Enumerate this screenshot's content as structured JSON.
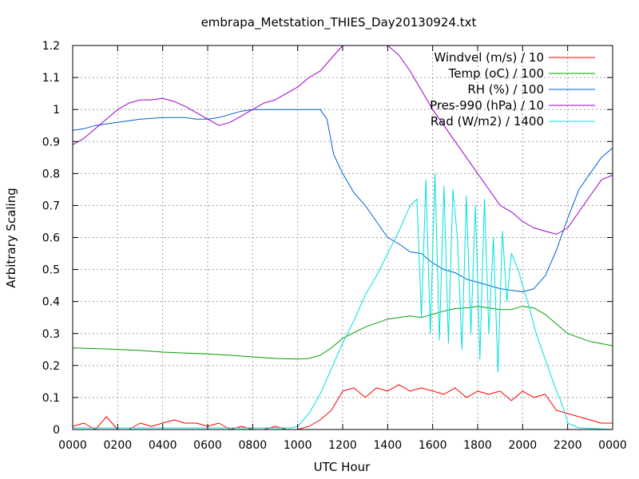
{
  "chart_data": {
    "type": "line",
    "title": "embrapa_Metstation_THIES_Day20130924.txt",
    "xlabel": "UTC Hour",
    "ylabel": "Arbitrary Scaling",
    "xlim": [
      0,
      24
    ],
    "ylim": [
      0,
      1.2
    ],
    "x_ticks": [
      0,
      2,
      4,
      6,
      8,
      10,
      12,
      14,
      16,
      18,
      20,
      22,
      24
    ],
    "x_tick_labels": [
      "0000",
      "0200",
      "0400",
      "0600",
      "0800",
      "1000",
      "1200",
      "1400",
      "1600",
      "1800",
      "2000",
      "2200",
      "0000"
    ],
    "y_ticks": [
      0,
      0.1,
      0.2,
      0.3,
      0.4,
      0.5,
      0.6,
      0.7,
      0.8,
      0.9,
      1,
      1.1,
      1.2
    ],
    "y_tick_labels": [
      "0",
      "0.1",
      "0.2",
      "0.3",
      "0.4",
      "0.5",
      "0.6",
      "0.7",
      "0.8",
      "0.9",
      "1",
      "1.1",
      "1.2"
    ],
    "grid": true,
    "legend_position": "top-right",
    "series": [
      {
        "name": "Windvel (m/s) / 10",
        "color": "#ff0000",
        "x": [
          0,
          0.5,
          1,
          1.5,
          2,
          2.5,
          3,
          3.5,
          4,
          4.5,
          5,
          5.5,
          6,
          6.5,
          7,
          7.5,
          8,
          8.5,
          9,
          9.5,
          10,
          10.5,
          11,
          11.5,
          12,
          12.5,
          13,
          13.5,
          14,
          14.5,
          15,
          15.5,
          16,
          16.5,
          17,
          17.5,
          18,
          18.5,
          19,
          19.5,
          20,
          20.5,
          21,
          21.5,
          22,
          22.5,
          23,
          23.5,
          24
        ],
        "y": [
          0.01,
          0.02,
          0.0,
          0.04,
          0.0,
          0.0,
          0.02,
          0.01,
          0.02,
          0.03,
          0.02,
          0.02,
          0.01,
          0.02,
          0.0,
          0.01,
          0.0,
          0.0,
          0.01,
          0.0,
          0.0,
          0.01,
          0.03,
          0.06,
          0.12,
          0.13,
          0.1,
          0.13,
          0.12,
          0.14,
          0.12,
          0.13,
          0.12,
          0.11,
          0.13,
          0.1,
          0.12,
          0.11,
          0.12,
          0.09,
          0.12,
          0.1,
          0.11,
          0.06,
          0.05,
          0.04,
          0.03,
          0.02,
          0.02
        ]
      },
      {
        "name": "Temp (oC) / 100",
        "color": "#00a000",
        "x": [
          0,
          1,
          2,
          3,
          4,
          5,
          6,
          7,
          8,
          9,
          10,
          10.5,
          11,
          11.5,
          12,
          13,
          14,
          15,
          15.5,
          16,
          16.5,
          17,
          17.5,
          18,
          18.5,
          19,
          19.5,
          20,
          20.5,
          21,
          21.5,
          22,
          23,
          24
        ],
        "y": [
          0.255,
          0.253,
          0.25,
          0.247,
          0.242,
          0.239,
          0.236,
          0.232,
          0.227,
          0.222,
          0.22,
          0.222,
          0.232,
          0.255,
          0.285,
          0.32,
          0.345,
          0.355,
          0.35,
          0.36,
          0.37,
          0.378,
          0.38,
          0.385,
          0.38,
          0.375,
          0.375,
          0.385,
          0.38,
          0.36,
          0.33,
          0.3,
          0.275,
          0.262
        ]
      },
      {
        "name": "RH (%) / 100",
        "color": "#0060d0",
        "x": [
          0,
          0.5,
          1,
          1.5,
          2,
          3,
          4,
          5,
          5.5,
          6,
          6.5,
          7,
          7.5,
          8,
          9,
          10,
          11,
          11.3,
          11.6,
          12,
          12.5,
          13,
          13.5,
          14,
          14.5,
          15,
          15.5,
          16,
          16.5,
          17,
          17.5,
          18,
          18.5,
          19,
          19.5,
          20,
          20.5,
          21,
          21.5,
          22,
          22.5,
          23,
          23.5,
          24
        ],
        "y": [
          0.935,
          0.94,
          0.95,
          0.955,
          0.96,
          0.97,
          0.975,
          0.975,
          0.97,
          0.97,
          0.975,
          0.985,
          0.995,
          1.0,
          1.0,
          1.0,
          1.0,
          0.97,
          0.86,
          0.8,
          0.74,
          0.7,
          0.65,
          0.6,
          0.58,
          0.555,
          0.55,
          0.52,
          0.5,
          0.49,
          0.47,
          0.46,
          0.45,
          0.44,
          0.435,
          0.43,
          0.44,
          0.48,
          0.56,
          0.66,
          0.75,
          0.8,
          0.85,
          0.88
        ]
      },
      {
        "name": "Pres-990 (hPa) / 10",
        "color": "#9900cc",
        "x": [
          0,
          0.5,
          1,
          1.5,
          2,
          2.5,
          3,
          3.5,
          4,
          4.5,
          5,
          5.5,
          6,
          6.5,
          7,
          7.5,
          8,
          8.5,
          9,
          9.5,
          10,
          10.5,
          11,
          11.5,
          12,
          12.5,
          13,
          13.5,
          14,
          14.5,
          15,
          15.5,
          16,
          16.5,
          17,
          17.5,
          18,
          18.5,
          19,
          19.5,
          20,
          20.5,
          21,
          21.5,
          22,
          22.5,
          23,
          23.5,
          24
        ],
        "y": [
          0.89,
          0.91,
          0.94,
          0.97,
          1.0,
          1.02,
          1.03,
          1.03,
          1.035,
          1.025,
          1.01,
          0.99,
          0.97,
          0.95,
          0.96,
          0.98,
          1.0,
          1.02,
          1.03,
          1.05,
          1.07,
          1.1,
          1.12,
          1.16,
          1.2,
          1.21,
          1.22,
          1.21,
          1.2,
          1.17,
          1.12,
          1.06,
          1.0,
          0.95,
          0.9,
          0.85,
          0.8,
          0.75,
          0.7,
          0.68,
          0.65,
          0.63,
          0.62,
          0.61,
          0.63,
          0.68,
          0.73,
          0.78,
          0.795
        ]
      },
      {
        "name": "Rad (W/m2) / 1400",
        "color": "#00e0e0",
        "x": [
          0,
          9.7,
          10,
          10.5,
          11,
          11.5,
          12,
          12.5,
          13,
          13.5,
          14,
          14.5,
          15,
          15.3,
          15.5,
          15.7,
          15.9,
          16.1,
          16.3,
          16.5,
          16.7,
          16.9,
          17.1,
          17.3,
          17.5,
          17.7,
          17.9,
          18.1,
          18.3,
          18.5,
          18.7,
          18.9,
          19.1,
          19.3,
          19.5,
          19.8,
          20,
          20.3,
          20.6,
          21,
          21.4,
          21.8,
          22,
          22.5,
          24
        ],
        "y": [
          0.005,
          0.005,
          0.01,
          0.05,
          0.11,
          0.19,
          0.27,
          0.34,
          0.42,
          0.48,
          0.55,
          0.62,
          0.7,
          0.72,
          0.35,
          0.78,
          0.3,
          0.8,
          0.28,
          0.76,
          0.27,
          0.75,
          0.6,
          0.25,
          0.73,
          0.3,
          0.7,
          0.22,
          0.72,
          0.3,
          0.6,
          0.18,
          0.62,
          0.4,
          0.55,
          0.5,
          0.45,
          0.38,
          0.3,
          0.22,
          0.14,
          0.07,
          0.02,
          0.005,
          0.0
        ]
      }
    ]
  }
}
